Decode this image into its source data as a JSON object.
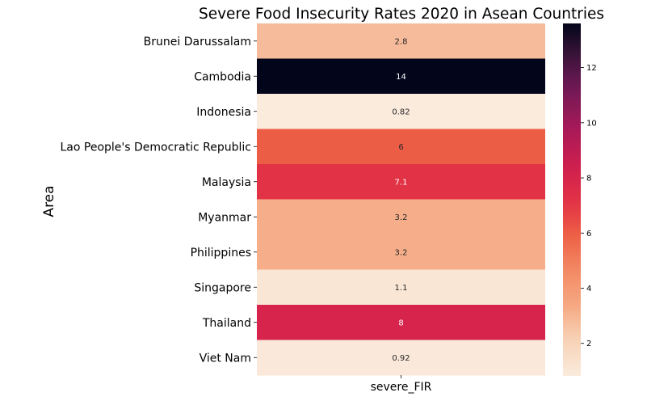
{
  "chart_data": {
    "type": "heatmap",
    "title": "Severe Food Insecurity Rates 2020 in Asean Countries",
    "xlabel": "",
    "ylabel": "Area",
    "x_categories": [
      "severe_FIR"
    ],
    "rows": [
      {
        "label": "Brunei Darussalam",
        "value": 2.8,
        "annotation": "2.8"
      },
      {
        "label": "Cambodia",
        "value": 13.6,
        "annotation": "14"
      },
      {
        "label": "Indonesia",
        "value": 0.82,
        "annotation": "0.82"
      },
      {
        "label": "Lao People's Democratic Republic",
        "value": 6,
        "annotation": "6"
      },
      {
        "label": "Malaysia",
        "value": 7.1,
        "annotation": "7.1"
      },
      {
        "label": "Myanmar",
        "value": 3.2,
        "annotation": "3.2"
      },
      {
        "label": "Philippines",
        "value": 3.2,
        "annotation": "3.2"
      },
      {
        "label": "Singapore",
        "value": 1.1,
        "annotation": "1.1"
      },
      {
        "label": "Thailand",
        "value": 8,
        "annotation": "8"
      },
      {
        "label": "Viet Nam",
        "value": 0.92,
        "annotation": "0.92"
      }
    ],
    "colorbar": {
      "range": [
        0.82,
        13.6
      ],
      "ticks": [
        2,
        4,
        6,
        8,
        10,
        12
      ],
      "colormap": "rocket_r"
    },
    "grid": false
  }
}
